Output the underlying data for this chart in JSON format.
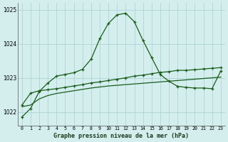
{
  "title": "Graphe pression niveau de la mer (hPa)",
  "bg_color": "#d4eeee",
  "grid_color": "#b0d4d4",
  "line_color": "#1a5c1a",
  "xlim": [
    -0.5,
    23.5
  ],
  "ylim": [
    1021.6,
    1025.2
  ],
  "yticks": [
    1022,
    1023,
    1024,
    1025
  ],
  "xticks": [
    0,
    1,
    2,
    3,
    4,
    5,
    6,
    7,
    8,
    9,
    10,
    11,
    12,
    13,
    14,
    15,
    16,
    17,
    18,
    19,
    20,
    21,
    22,
    23
  ],
  "main_line": [
    1021.85,
    1022.1,
    1022.6,
    1022.85,
    1023.05,
    1023.1,
    1023.15,
    1023.25,
    1023.55,
    1024.15,
    1024.6,
    1024.85,
    1024.9,
    1024.65,
    1024.1,
    1023.6,
    1023.1,
    1022.9,
    1022.75,
    1022.72,
    1022.7,
    1022.7,
    1022.68,
    1023.2
  ],
  "line2": [
    1022.2,
    1022.55,
    1022.62,
    1022.65,
    1022.68,
    1022.72,
    1022.76,
    1022.8,
    1022.85,
    1022.88,
    1022.92,
    1022.96,
    1023.0,
    1023.05,
    1023.08,
    1023.12,
    1023.16,
    1023.18,
    1023.22,
    1023.22,
    1023.24,
    1023.26,
    1023.28,
    1023.3
  ],
  "line3": [
    1022.15,
    1022.2,
    1022.38,
    1022.48,
    1022.54,
    1022.58,
    1022.62,
    1022.66,
    1022.7,
    1022.73,
    1022.76,
    1022.78,
    1022.8,
    1022.82,
    1022.84,
    1022.86,
    1022.88,
    1022.9,
    1022.92,
    1022.94,
    1022.96,
    1022.98,
    1023.0,
    1023.02
  ]
}
